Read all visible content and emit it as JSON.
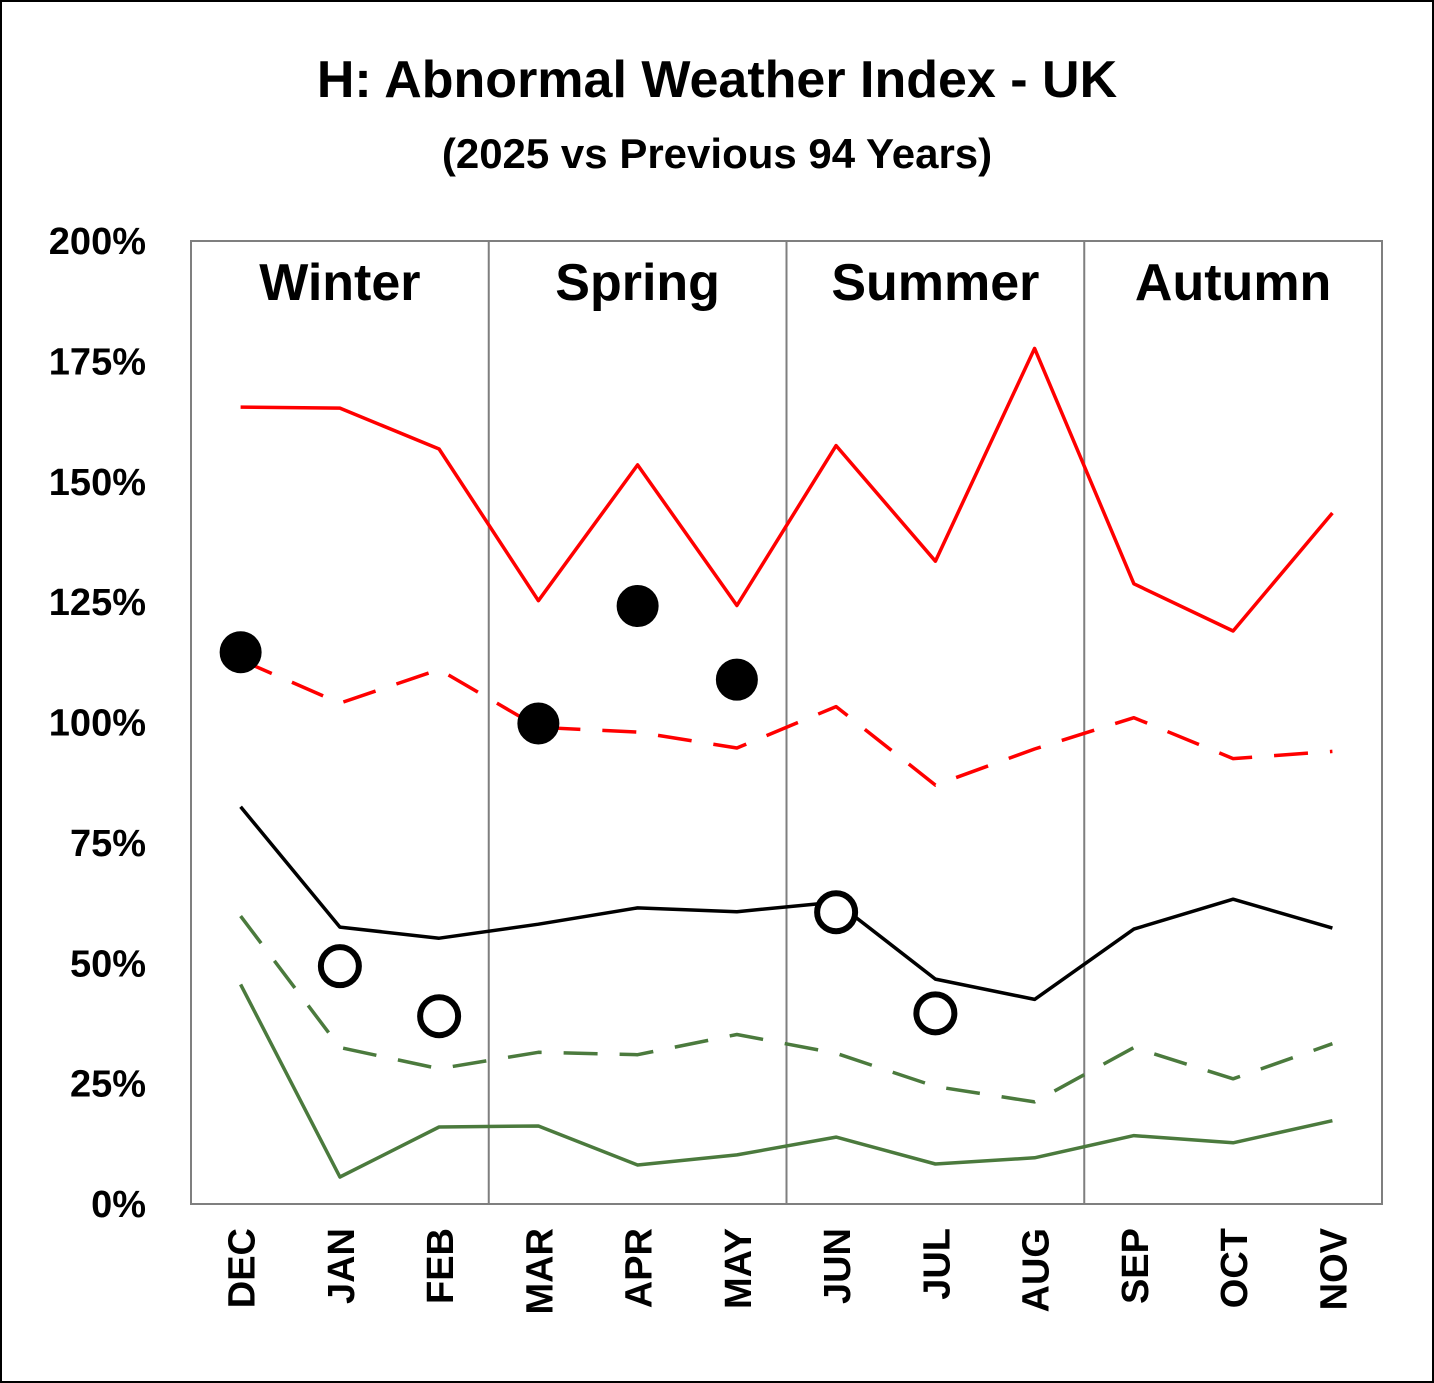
{
  "chart_data": {
    "type": "line",
    "title": "H: Abnormal Weather Index - UK",
    "subtitle": "(2025 vs Previous 94 Years)",
    "categories": [
      "DEC",
      "JAN",
      "FEB",
      "MAR",
      "APR",
      "MAY",
      "JUN",
      "JUL",
      "AUG",
      "SEP",
      "OCT",
      "NOV"
    ],
    "seasons": [
      "Winter",
      "Spring",
      "Summer",
      "Autumn"
    ],
    "y_ticks": [
      "0%",
      "25%",
      "50%",
      "75%",
      "100%",
      "125%",
      "150%",
      "175%",
      "200%"
    ],
    "ylim": [
      0,
      200
    ],
    "grid": false,
    "series": [
      {
        "color": "#ff0000",
        "style": "solid",
        "values": [
          165.5,
          165.3,
          156.8,
          125.3,
          153.5,
          124.3,
          157.5,
          133.5,
          177.7,
          128.8,
          119.0,
          143.5
        ]
      },
      {
        "color": "#ff0000",
        "style": "dashed",
        "values": [
          113.0,
          104.0,
          111.0,
          99.0,
          98.0,
          94.7,
          103.3,
          87.0,
          94.5,
          101.0,
          92.5,
          94.0
        ]
      },
      {
        "color": "#000000",
        "style": "solid",
        "values": [
          82.5,
          57.5,
          55.2,
          58.1,
          61.5,
          60.7,
          62.7,
          46.7,
          42.5,
          57.1,
          63.3,
          57.3
        ]
      },
      {
        "color": "#4b7a3d",
        "style": "dashed",
        "values": [
          59.8,
          32.5,
          28.1,
          31.5,
          31.0,
          35.2,
          31.3,
          24.4,
          21.2,
          32.5,
          26.0,
          33.3
        ]
      },
      {
        "color": "#4b7a3d",
        "style": "solid",
        "values": [
          45.6,
          5.6,
          16.0,
          16.2,
          8.1,
          10.2,
          13.9,
          8.3,
          9.6,
          14.2,
          12.7,
          17.3
        ]
      }
    ],
    "markers": [
      {
        "category": "DEC",
        "value": 114.6,
        "filled": true
      },
      {
        "category": "JAN",
        "value": 49.4,
        "filled": false
      },
      {
        "category": "FEB",
        "value": 39.0,
        "filled": false
      },
      {
        "category": "MAR",
        "value": 99.8,
        "filled": true
      },
      {
        "category": "APR",
        "value": 124.2,
        "filled": true
      },
      {
        "category": "MAY",
        "value": 108.9,
        "filled": true
      },
      {
        "category": "JUN",
        "value": 60.6,
        "filled": false
      },
      {
        "category": "JUL",
        "value": 39.6,
        "filled": false
      }
    ]
  }
}
